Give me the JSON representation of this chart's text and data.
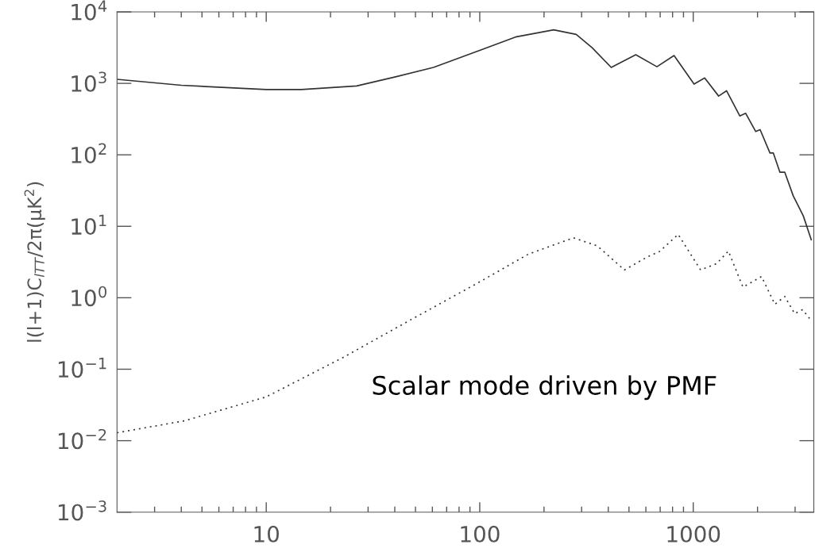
{
  "chart_data": {
    "type": "line",
    "ylabel": "l(l+1)C$_{lTT}$/2π(μK$^{2}$)",
    "log": "xy",
    "grid": false,
    "legend": false,
    "marker": "none",
    "xlim": [
      2,
      3670
    ],
    "ylim": [
      0.001,
      10000
    ],
    "xticks": [
      {
        "value": 3,
        "label": null
      },
      {
        "value": 4,
        "label": null
      },
      {
        "value": 5,
        "label": null
      },
      {
        "value": 6,
        "label": null
      },
      {
        "value": 7,
        "label": null
      },
      {
        "value": 8,
        "label": null
      },
      {
        "value": 9,
        "label": null
      },
      10,
      {
        "value": 20,
        "label": null
      },
      {
        "value": 30,
        "label": null
      },
      {
        "value": 40,
        "label": null
      },
      {
        "value": 50,
        "label": null
      },
      {
        "value": 60,
        "label": null
      },
      {
        "value": 70,
        "label": null
      },
      {
        "value": 80,
        "label": null
      },
      {
        "value": 90,
        "label": null
      },
      100,
      {
        "value": 200,
        "label": null
      },
      {
        "value": 300,
        "label": null
      },
      {
        "value": 400,
        "label": null
      },
      {
        "value": 500,
        "label": null
      },
      {
        "value": 600,
        "label": null
      },
      {
        "value": 700,
        "label": null
      },
      {
        "value": 800,
        "label": null
      },
      {
        "value": 900,
        "label": null
      },
      1000,
      {
        "value": 2000,
        "label": null
      },
      {
        "value": 3000,
        "label": null
      }
    ],
    "yticks": [
      {
        "value": 0.001,
        "label": "10$^{−3}$"
      },
      {
        "value": 0.01,
        "label": "10$^{−2}$"
      },
      {
        "value": 0.1,
        "label": "10$^{−1}$"
      },
      {
        "value": 1,
        "label": "10$^{0}$"
      },
      {
        "value": 10,
        "label": "10$^{1}$"
      },
      {
        "value": 100,
        "label": "10$^{2}$"
      },
      {
        "value": 1000,
        "label": "10$^{3}$"
      },
      {
        "value": 10000,
        "label": "10$^{4}$"
      }
    ],
    "annotations": [
      "Scalar mode driven by PMF"
    ],
    "series": [
      {
        "color": "#333333",
        "line_style": "solid",
        "x": [
          2,
          4,
          10,
          14.6,
          26.5,
          40.7,
          60.7,
          100,
          147,
          222,
          283,
          336,
          413,
          538,
          676,
          813,
          1009,
          1131,
          1315,
          1432,
          1652,
          1760,
          1962,
          2057,
          2287,
          2372,
          2547,
          2684,
          2939,
          3276,
          3570
        ],
        "values": [
          1140,
          940,
          820,
          820,
          920,
          1240,
          1670,
          2900,
          4450,
          5600,
          4850,
          3160,
          1670,
          2510,
          1710,
          2450,
          975,
          1190,
          664,
          787,
          350,
          381,
          212,
          225,
          106,
          106,
          57,
          57,
          26.7,
          14,
          6.5
        ]
      },
      {
        "color": "#333333",
        "line_style": "dotted",
        "x": [
          2,
          4.15,
          10,
          23,
          48.3,
          98.6,
          169,
          275,
          356,
          476,
          612,
          696,
          850,
          1082,
          1285,
          1461,
          1660,
          1710,
          2089,
          2410,
          2684,
          2985,
          3250,
          3570
        ],
        "values": [
          0.0129,
          0.019,
          0.041,
          0.147,
          0.505,
          1.63,
          4.08,
          6.9,
          5.3,
          2.45,
          3.75,
          4.45,
          7.7,
          2.45,
          3.0,
          4.5,
          1.74,
          1.41,
          1.98,
          0.81,
          1.04,
          0.6,
          0.68,
          0.48
        ]
      }
    ]
  }
}
